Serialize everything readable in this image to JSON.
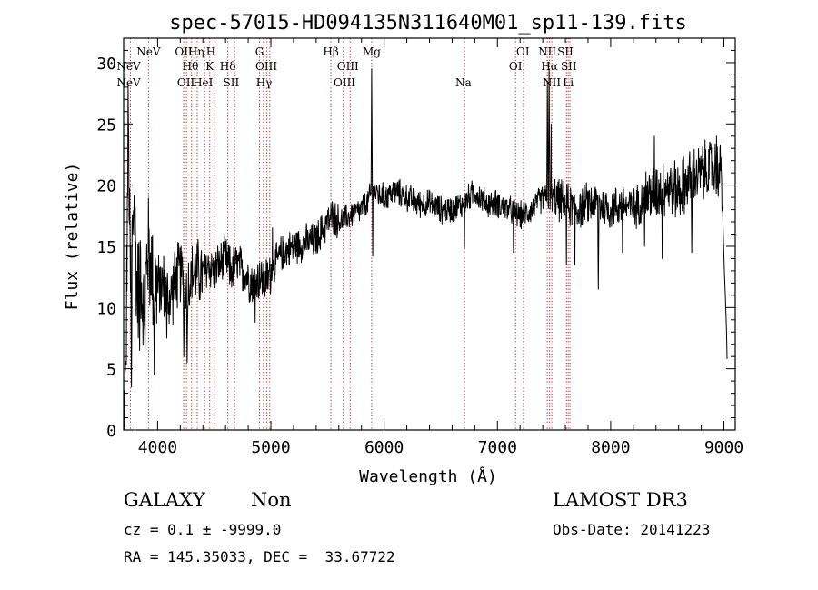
{
  "chart_data": {
    "type": "line",
    "title": "spec-57015-HD094135N311640M01_sp11-139.fits",
    "xlabel": "Wavelength (Å)",
    "ylabel": "Flux (relative)",
    "xlim": [
      3700,
      9100
    ],
    "ylim": [
      0,
      32
    ],
    "xticks": [
      4000,
      5000,
      6000,
      7000,
      8000,
      9000
    ],
    "yticks": [
      0,
      5,
      10,
      15,
      20,
      25,
      30
    ],
    "grid": false,
    "line_color": "#000000",
    "marker_color": "#b22222",
    "spectrum_anchors": [
      [
        3700,
        0.5
      ],
      [
        3720,
        4
      ],
      [
        3740,
        25
      ],
      [
        3760,
        12
      ],
      [
        3790,
        19
      ],
      [
        3820,
        11
      ],
      [
        3850,
        14
      ],
      [
        3880,
        9
      ],
      [
        3910,
        15
      ],
      [
        3950,
        13
      ],
      [
        4000,
        11.5
      ],
      [
        4050,
        12
      ],
      [
        4100,
        10.5
      ],
      [
        4150,
        12
      ],
      [
        4200,
        13
      ],
      [
        4250,
        11.5
      ],
      [
        4300,
        12.5
      ],
      [
        4350,
        13
      ],
      [
        4400,
        12.5
      ],
      [
        4450,
        13.5
      ],
      [
        4500,
        13
      ],
      [
        4550,
        13.5
      ],
      [
        4600,
        14
      ],
      [
        4650,
        13
      ],
      [
        4700,
        13.5
      ],
      [
        4750,
        13
      ],
      [
        4800,
        12.5
      ],
      [
        4850,
        12
      ],
      [
        4900,
        12.5
      ],
      [
        4950,
        12
      ],
      [
        5000,
        13
      ],
      [
        5100,
        14.5
      ],
      [
        5200,
        15
      ],
      [
        5300,
        15.3
      ],
      [
        5400,
        15.5
      ],
      [
        5500,
        17
      ],
      [
        5550,
        17.5
      ],
      [
        5600,
        17
      ],
      [
        5700,
        17.5
      ],
      [
        5800,
        18
      ],
      [
        5850,
        18.5
      ],
      [
        5900,
        19.5
      ],
      [
        6000,
        19
      ],
      [
        6100,
        19.5
      ],
      [
        6200,
        19
      ],
      [
        6300,
        18.5
      ],
      [
        6400,
        18.5
      ],
      [
        6500,
        18
      ],
      [
        6600,
        18
      ],
      [
        6700,
        18.5
      ],
      [
        6800,
        19.5
      ],
      [
        6900,
        18.5
      ],
      [
        7000,
        18.5
      ],
      [
        7100,
        18
      ],
      [
        7200,
        17.5
      ],
      [
        7300,
        18
      ],
      [
        7400,
        19
      ],
      [
        7500,
        19
      ],
      [
        7600,
        18.5
      ],
      [
        7700,
        18
      ],
      [
        7800,
        18.5
      ],
      [
        7900,
        18.5
      ],
      [
        8000,
        18
      ],
      [
        8100,
        18.5
      ],
      [
        8200,
        18
      ],
      [
        8300,
        19
      ],
      [
        8400,
        19.5
      ],
      [
        8500,
        20
      ],
      [
        8600,
        19.5
      ],
      [
        8700,
        20.5
      ],
      [
        8800,
        21
      ],
      [
        8900,
        21.5
      ],
      [
        8980,
        21
      ],
      [
        9000,
        14
      ],
      [
        9020,
        9
      ],
      [
        9030,
        5
      ]
    ],
    "spectrum_features": [
      [
        3743,
        25.5
      ],
      [
        3768,
        3.5
      ],
      [
        3840,
        6.5
      ],
      [
        3890,
        6.5
      ],
      [
        3970,
        4.5
      ],
      [
        4080,
        7.5
      ],
      [
        4230,
        6
      ],
      [
        4262,
        5.5
      ],
      [
        4860,
        8.8
      ],
      [
        5015,
        16.5
      ],
      [
        5890,
        29.5
      ],
      [
        5900,
        14.2
      ],
      [
        6708,
        14.8
      ],
      [
        7140,
        14.5
      ],
      [
        7440,
        28.5
      ],
      [
        7455,
        29.5
      ],
      [
        7475,
        25
      ],
      [
        7610,
        13.5
      ],
      [
        7685,
        13.5
      ],
      [
        7890,
        11.5
      ],
      [
        8105,
        14.5
      ],
      [
        8300,
        15
      ],
      [
        8385,
        24
      ],
      [
        8455,
        14
      ],
      [
        8715,
        14.5
      ],
      [
        8935,
        24
      ]
    ],
    "lines_top": [
      {
        "label": "NeV",
        "x": 3920
      },
      {
        "label": "OII",
        "x": 4230
      },
      {
        "label": "Hη",
        "x": 4340
      },
      {
        "label": "H",
        "x": 4470
      },
      {
        "label": "G",
        "x": 4900
      },
      {
        "label": "Hβ",
        "x": 5530
      },
      {
        "label": "Mg",
        "x": 5890
      },
      {
        "label": "OI",
        "x": 7225
      },
      {
        "label": "NII",
        "x": 7440
      },
      {
        "label": "SII",
        "x": 7600
      }
    ],
    "lines_mid": [
      {
        "label": "NeV",
        "x": 3745
      },
      {
        "label": "Hθ",
        "x": 4290
      },
      {
        "label": "K",
        "x": 4460
      },
      {
        "label": "Hδ",
        "x": 4620
      },
      {
        "label": "OIII",
        "x": 4960
      },
      {
        "label": "OIII",
        "x": 5680
      },
      {
        "label": "OI",
        "x": 7160
      },
      {
        "label": "Hα",
        "x": 7460
      },
      {
        "label": "SII",
        "x": 7630
      }
    ],
    "lines_bot": [
      {
        "label": "NeV",
        "x": 3745
      },
      {
        "label": "OII",
        "x": 4250
      },
      {
        "label": "HeI",
        "x": 4400
      },
      {
        "label": "SII",
        "x": 4650
      },
      {
        "label": "Hγ",
        "x": 4940
      },
      {
        "label": "OIII",
        "x": 5650
      },
      {
        "label": "Na",
        "x": 6700
      },
      {
        "label": "NII",
        "x": 7480
      },
      {
        "label": "Li",
        "x": 7625
      }
    ],
    "marker_lines": [
      3760,
      3920,
      4230,
      4255,
      4300,
      4350,
      4415,
      4460,
      4500,
      4620,
      4680,
      4900,
      4935,
      4965,
      4990,
      5530,
      5640,
      5700,
      5890,
      6710,
      7160,
      7230,
      7440,
      7460,
      7480,
      7610,
      7625,
      7640
    ]
  },
  "info": {
    "object_class": "GALAXY",
    "subclass": "Non",
    "survey": "LAMOST DR3",
    "redshift_text": "cz = 0.1 ± -9999.0",
    "obs_date_text": "Obs-Date: 20141223",
    "coords_text": "RA = 145.35033, DEC =  33.67722"
  }
}
